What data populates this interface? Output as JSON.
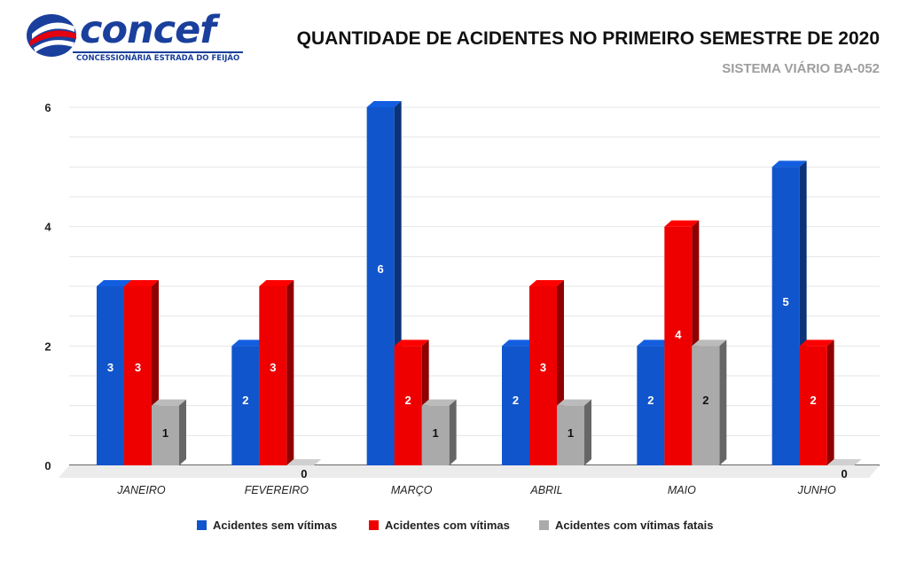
{
  "header": {
    "logo_name": "concef",
    "logo_tagline": "CONCESSIONÁRIA ESTRADA DO FEIJÃO",
    "title": "QUANTIDADE DE ACIDENTES NO PRIMEIRO SEMESTRE DE 2020",
    "subtitle": "SISTEMA VIÁRIO BA-052"
  },
  "colors": {
    "brand_blue": "#1a3f9c",
    "brand_red": "#e3000f"
  },
  "chart_data": {
    "type": "bar",
    "style": "3d-clustered",
    "title": "QUANTIDADE DE ACIDENTES NO PRIMEIRO SEMESTRE DE 2020",
    "subtitle": "SISTEMA VIÁRIO BA-052",
    "categories": [
      "JANEIRO",
      "FEVEREIRO",
      "MARÇO",
      "ABRIL",
      "MAIO",
      "JUNHO"
    ],
    "series": [
      {
        "name": "Acidentes sem vítimas",
        "color": "#1155cc",
        "values": [
          3,
          2,
          6,
          2,
          2,
          5
        ]
      },
      {
        "name": "Acidentes com vítimas",
        "color": "#ee0000",
        "values": [
          3,
          3,
          2,
          3,
          4,
          2
        ]
      },
      {
        "name": "Acidentes com vítimas fatais",
        "color": "#aaaaaa",
        "values": [
          1,
          0,
          1,
          1,
          2,
          0
        ]
      }
    ],
    "ylim": [
      0,
      6
    ],
    "yticks": [
      0,
      2,
      4,
      6
    ],
    "grid": true,
    "legend_position": "bottom",
    "data_labels": true
  }
}
